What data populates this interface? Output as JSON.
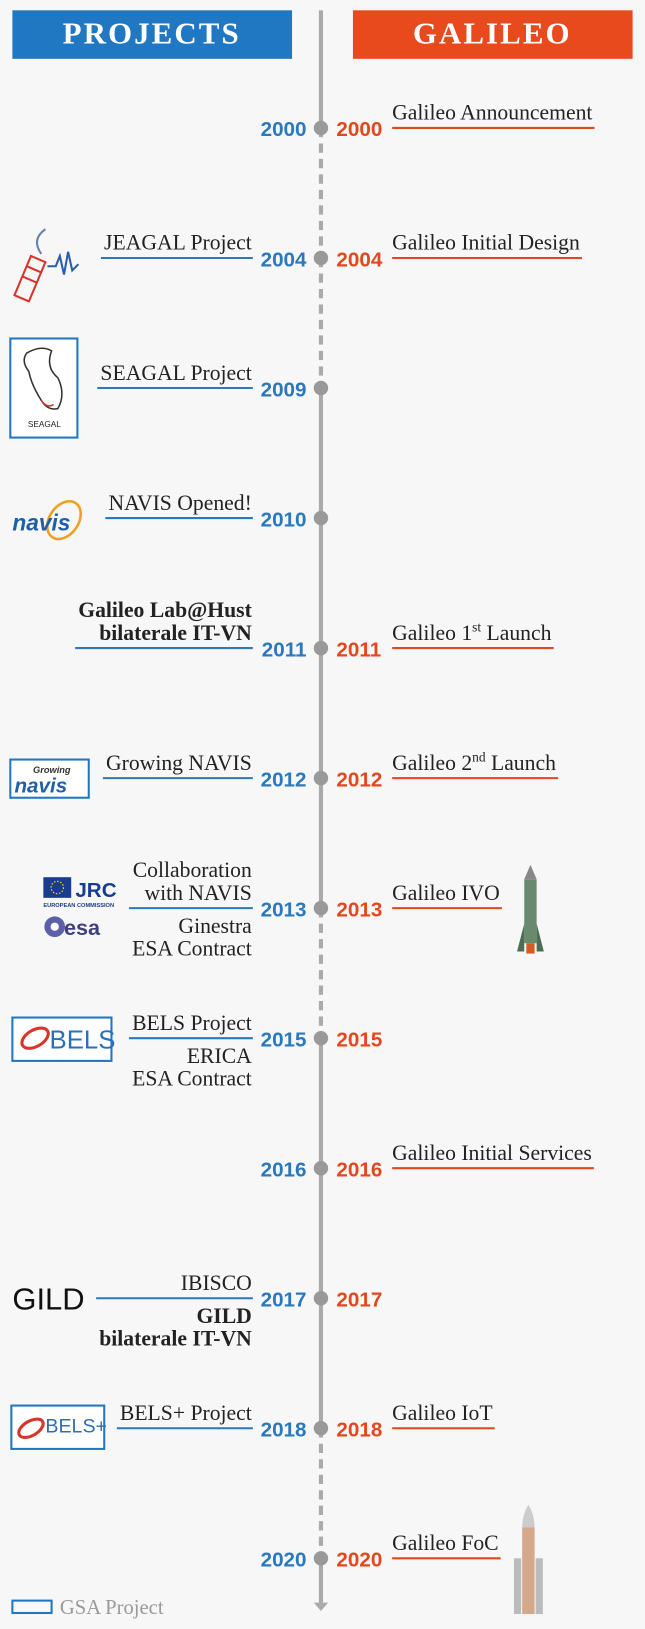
{
  "header": {
    "projects": "PROJECTS",
    "galileo": "GALILEO"
  },
  "rows": [
    {
      "year": 2000,
      "galileo": {
        "year": 2000,
        "event": {
          "text": "Galileo Announcement"
        }
      }
    },
    {
      "year": 2004,
      "project": {
        "above": [
          "JEAGAL Project"
        ]
      },
      "galileo": {
        "year": 2004,
        "event": {
          "text": "Galileo Initial Design"
        }
      }
    },
    {
      "year": 2009,
      "project": {
        "above": [
          "SEAGAL Project"
        ],
        "logo": [
          "SEAGAL"
        ]
      }
    },
    {
      "year": 2010,
      "project": {
        "above": [
          "NAVIS Opened!"
        ],
        "logo": [
          "navis"
        ]
      }
    },
    {
      "year": 2011,
      "project": {
        "above": [
          "Galileo Lab@Hust",
          "bilaterale IT-VN"
        ],
        "bold_above": true
      },
      "galileo": {
        "year": 2011,
        "event": {
          "text": "Galileo 1",
          "sup": "st",
          "post": " Launch"
        }
      }
    },
    {
      "year": 2012,
      "project": {
        "above": [
          "Growing NAVIS"
        ],
        "logo": [
          "Growing",
          "navis"
        ]
      },
      "galileo": {
        "year": 2012,
        "event": {
          "text": "Galileo 2",
          "sup": "nd",
          "post": " Launch"
        }
      }
    },
    {
      "year": 2013,
      "project": {
        "above": [
          "Collaboration",
          "with NAVIS"
        ],
        "below": [
          "Ginestra",
          "ESA Contract"
        ],
        "logo": [
          "JRC",
          "EUROPEAN COMMISSION",
          "esa"
        ]
      },
      "galileo": {
        "year": 2013,
        "event": {
          "text": "Galileo IVO"
        }
      }
    },
    {
      "year": 2015,
      "project": {
        "above": [
          "BELS Project"
        ],
        "below": [
          "ERICA",
          "ESA Contract"
        ],
        "logo": [
          "BELS"
        ]
      },
      "galileo": {
        "year": 2015
      }
    },
    {
      "year": 2016,
      "galileo": {
        "year": 2016,
        "event": {
          "text": "Galileo Initial Services"
        }
      }
    },
    {
      "year": 2017,
      "project": {
        "above": [
          "IBISCO"
        ],
        "below": [
          "GILD",
          "bilaterale IT-VN"
        ],
        "bold_below": true,
        "logo": [
          "GILD"
        ]
      },
      "galileo": {
        "year": 2017
      }
    },
    {
      "year": 2018,
      "project": {
        "above": [
          "BELS+ Project"
        ],
        "logo": [
          "BELS+"
        ]
      },
      "galileo": {
        "year": 2018,
        "event": {
          "text": "Galileo IoT"
        }
      }
    },
    {
      "year": 2020,
      "galileo": {
        "year": 2020,
        "event": {
          "text": "Galileo FoC"
        }
      }
    }
  ],
  "legend": "GSA Project"
}
